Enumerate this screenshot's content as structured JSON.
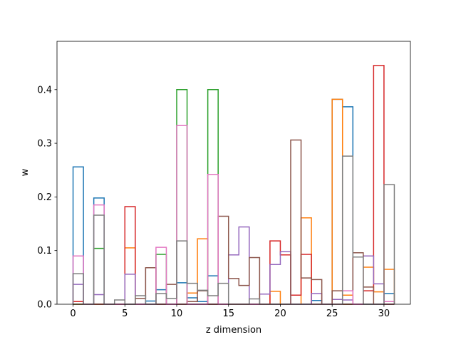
{
  "chart_data": {
    "type": "histogram-step",
    "xlabel": "z dimension",
    "ylabel": "w",
    "xlim": [
      -1.55,
      32.55
    ],
    "ylim": [
      0,
      0.49
    ],
    "xticks": [
      0,
      5,
      10,
      15,
      20,
      25,
      30
    ],
    "yticks": [
      0.0,
      0.1,
      0.2,
      0.3,
      0.4
    ],
    "bin_edges": [
      0,
      1,
      2,
      3,
      4,
      5,
      6,
      7,
      8,
      9,
      10,
      11,
      12,
      13,
      14,
      15,
      16,
      17,
      18,
      19,
      20,
      21,
      22,
      23,
      24,
      25,
      26,
      27,
      28,
      29,
      30,
      31
    ],
    "grid": false,
    "series": [
      {
        "color": "#1f77b4",
        "values": [
          0.256,
          0,
          0.198,
          0,
          0,
          0,
          0,
          0.006,
          0.027,
          0,
          0.04,
          0.012,
          0.005,
          0.053,
          0,
          0,
          0,
          0,
          0,
          0,
          0,
          0,
          0,
          0.007,
          0,
          0.382,
          0.368,
          0,
          0,
          0,
          0.02
        ]
      },
      {
        "color": "#ff7f0e",
        "values": [
          0,
          0,
          0,
          0,
          0,
          0.105,
          0,
          0,
          0,
          0,
          0,
          0.021,
          0.122,
          0,
          0,
          0,
          0,
          0,
          0,
          0.024,
          0,
          0,
          0.161,
          0,
          0,
          0.382,
          0.017,
          0,
          0.069,
          0.023,
          0.065
        ]
      },
      {
        "color": "#2ca02c",
        "values": [
          0,
          0,
          0.104,
          0,
          0,
          0,
          0,
          0,
          0.093,
          0,
          0.4,
          0,
          0,
          0.4,
          0,
          0,
          0,
          0,
          0,
          0,
          0,
          0,
          0,
          0,
          0,
          0,
          0,
          0,
          0,
          0,
          0
        ]
      },
      {
        "color": "#d62728",
        "values": [
          0.005,
          0,
          0,
          0,
          0,
          0.182,
          0,
          0,
          0,
          0,
          0,
          0,
          0,
          0,
          0,
          0,
          0,
          0,
          0,
          0.118,
          0.092,
          0.017,
          0.093,
          0,
          0,
          0,
          0,
          0,
          0.025,
          0.445,
          0
        ]
      },
      {
        "color": "#9467bd",
        "values": [
          0.037,
          0,
          0.018,
          0,
          0,
          0.056,
          0,
          0,
          0,
          0,
          0,
          0,
          0,
          0,
          0,
          0.092,
          0.144,
          0,
          0.019,
          0.074,
          0.098,
          0,
          0,
          0.02,
          0,
          0.009,
          0.008,
          0,
          0.09,
          0.038,
          0
        ]
      },
      {
        "color": "#8c564b",
        "values": [
          0,
          0,
          0,
          0,
          0,
          0,
          0.011,
          0.068,
          0,
          0.037,
          0,
          0.005,
          0.025,
          0,
          0.164,
          0.048,
          0.035,
          0.087,
          0,
          0,
          0,
          0.306,
          0.049,
          0.046,
          0,
          0.025,
          0,
          0.096,
          0.032,
          0,
          0
        ]
      },
      {
        "color": "#e377c2",
        "values": [
          0.09,
          0,
          0.185,
          0,
          0,
          0,
          0,
          0,
          0.106,
          0,
          0.333,
          0,
          0,
          0.242,
          0,
          0,
          0,
          0,
          0,
          0,
          0,
          0,
          0,
          0,
          0,
          0,
          0.025,
          0,
          0,
          0,
          0.005
        ]
      },
      {
        "color": "#7f7f7f",
        "values": [
          0.057,
          0,
          0.166,
          0,
          0.008,
          0,
          0.016,
          0,
          0.02,
          0.011,
          0.118,
          0.039,
          0.026,
          0.016,
          0.039,
          0,
          0,
          0.01,
          0,
          0,
          0,
          0,
          0,
          0,
          0,
          0,
          0.276,
          0.088,
          0,
          0,
          0.223
        ]
      }
    ]
  }
}
